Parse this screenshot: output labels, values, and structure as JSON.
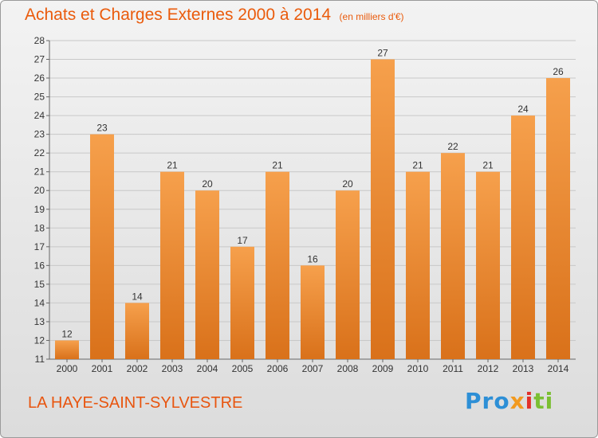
{
  "header": {
    "title": "Achats et Charges Externes 2000 à 2014",
    "unit": "(en milliers d'€)"
  },
  "footer": {
    "commune": "LA HAYE-SAINT-SYLVESTRE",
    "logo": [
      "Pro",
      "x",
      "i",
      "ti"
    ]
  },
  "colors": {
    "bar_top": "#f6a04c",
    "bar_bottom": "#d9711a",
    "title": "#ea5b0c",
    "grid": "#c8c8c8"
  },
  "chart_data": {
    "type": "bar",
    "title": "Achats et Charges Externes 2000 à 2014",
    "subtitle": "(en milliers d'€)",
    "xlabel": "",
    "ylabel": "",
    "categories": [
      "2000",
      "2001",
      "2002",
      "2003",
      "2004",
      "2005",
      "2006",
      "2007",
      "2008",
      "2009",
      "2010",
      "2011",
      "2012",
      "2013",
      "2014"
    ],
    "values": [
      12,
      23,
      14,
      21,
      20,
      17,
      21,
      16,
      20,
      27,
      21,
      22,
      21,
      24,
      26
    ],
    "ylim": [
      11,
      28
    ],
    "yticks": [
      11,
      12,
      13,
      14,
      15,
      16,
      17,
      18,
      19,
      20,
      21,
      22,
      23,
      24,
      25,
      26,
      27,
      28
    ],
    "grid": true,
    "data_labels": true
  }
}
